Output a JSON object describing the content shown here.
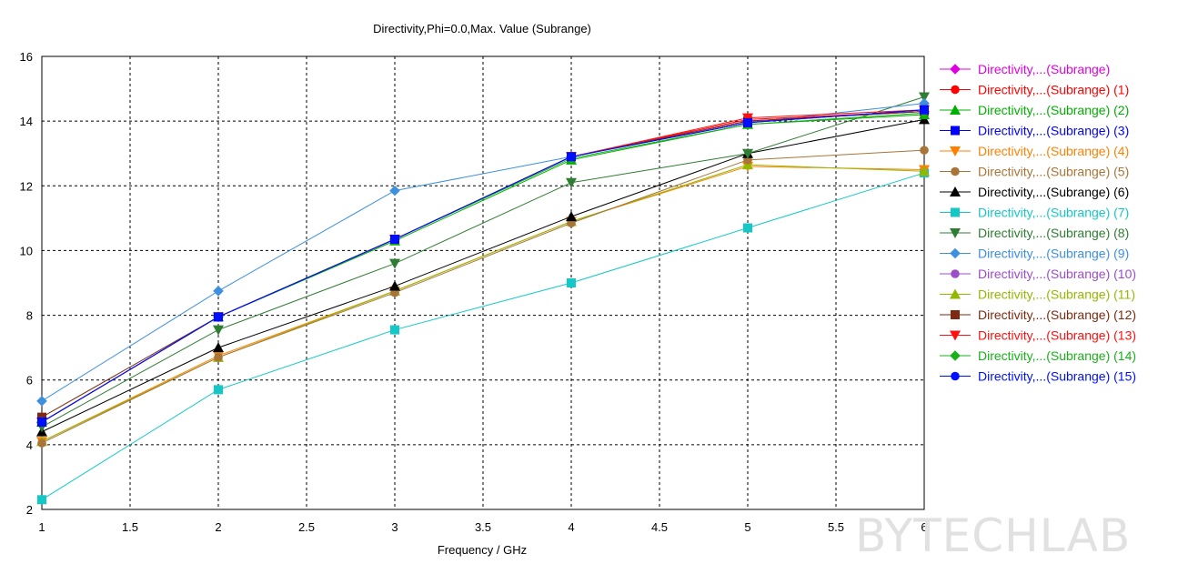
{
  "watermark": "BYTECHLAB",
  "chart_data": {
    "type": "line",
    "title": "Directivity,Phi=0.0,Max. Value (Subrange)",
    "xlabel": "Frequency / GHz",
    "ylabel": "",
    "xlim": [
      1,
      6
    ],
    "ylim": [
      2,
      16
    ],
    "xticks": [
      "1",
      "1.5",
      "2",
      "2.5",
      "3",
      "3.5",
      "4",
      "4.5",
      "5",
      "5.5",
      "6"
    ],
    "yticks": [
      "2",
      "4",
      "6",
      "8",
      "10",
      "12",
      "14",
      "16"
    ],
    "grid": true,
    "legend_position": "right",
    "x": [
      1,
      2,
      3,
      4,
      5,
      6
    ],
    "series": [
      {
        "name": "Directivity,...(Subrange)",
        "color": "#e000e0",
        "marker": "diamond",
        "values": [
          4.7,
          7.95,
          10.35,
          12.9,
          14.0,
          14.3
        ]
      },
      {
        "name": "Directivity,...(Subrange) (1)",
        "color": "#ff0000",
        "marker": "circle",
        "values": [
          4.7,
          7.95,
          10.35,
          12.9,
          14.05,
          14.3
        ]
      },
      {
        "name": "Directivity,...(Subrange) (2)",
        "color": "#00b000",
        "marker": "triangle",
        "values": [
          4.7,
          7.95,
          10.3,
          12.8,
          13.9,
          14.2
        ]
      },
      {
        "name": "Directivity,...(Subrange) (3)",
        "color": "#0000ff",
        "marker": "square",
        "values": [
          4.7,
          7.95,
          10.35,
          12.9,
          13.95,
          14.35
        ]
      },
      {
        "name": "Directivity,...(Subrange) (4)",
        "color": "#ff8000",
        "marker": "tri-down",
        "values": [
          4.1,
          6.75,
          8.75,
          10.9,
          12.6,
          12.5
        ]
      },
      {
        "name": "Directivity,...(Subrange) (5)",
        "color": "#a87438",
        "marker": "circle",
        "values": [
          4.05,
          6.7,
          8.7,
          10.85,
          12.8,
          13.1
        ]
      },
      {
        "name": "Directivity,...(Subrange) (6)",
        "color": "#000000",
        "marker": "triangle",
        "values": [
          4.4,
          7.0,
          8.9,
          11.05,
          13.0,
          14.05
        ]
      },
      {
        "name": "Directivity,...(Subrange) (7)",
        "color": "#14c8c8",
        "marker": "square",
        "values": [
          2.3,
          5.7,
          7.55,
          9.0,
          10.7,
          12.4
        ]
      },
      {
        "name": "Directivity,...(Subrange) (8)",
        "color": "#2e7d32",
        "marker": "tri-down",
        "values": [
          4.55,
          7.55,
          9.6,
          12.1,
          13.0,
          14.75
        ]
      },
      {
        "name": "Directivity,...(Subrange) (9)",
        "color": "#3d8fe0",
        "marker": "diamond",
        "values": [
          5.35,
          8.75,
          11.85,
          12.9,
          13.95,
          14.55
        ]
      },
      {
        "name": "Directivity,...(Subrange) (10)",
        "color": "#9b4dca",
        "marker": "circle",
        "values": [
          4.7,
          7.95,
          10.35,
          12.9,
          14.0,
          14.3
        ]
      },
      {
        "name": "Directivity,...(Subrange) (11)",
        "color": "#94b800",
        "marker": "triangle",
        "values": [
          4.1,
          6.7,
          8.75,
          10.9,
          12.65,
          12.45
        ]
      },
      {
        "name": "Directivity,...(Subrange) (12)",
        "color": "#7d2a10",
        "marker": "square",
        "values": [
          4.85,
          7.95,
          10.35,
          12.9,
          14.0,
          14.3
        ]
      },
      {
        "name": "Directivity,...(Subrange) (13)",
        "color": "#ff1010",
        "marker": "tri-down",
        "values": [
          4.7,
          7.95,
          10.35,
          12.9,
          14.1,
          14.35
        ]
      },
      {
        "name": "Directivity,...(Subrange) (14)",
        "color": "#1ab01a",
        "marker": "diamond",
        "values": [
          4.7,
          7.95,
          10.35,
          12.85,
          13.9,
          14.25
        ]
      },
      {
        "name": "Directivity,...(Subrange) (15)",
        "color": "#0010ff",
        "marker": "circle",
        "values": [
          4.7,
          7.95,
          10.35,
          12.9,
          13.95,
          14.35
        ]
      }
    ]
  }
}
